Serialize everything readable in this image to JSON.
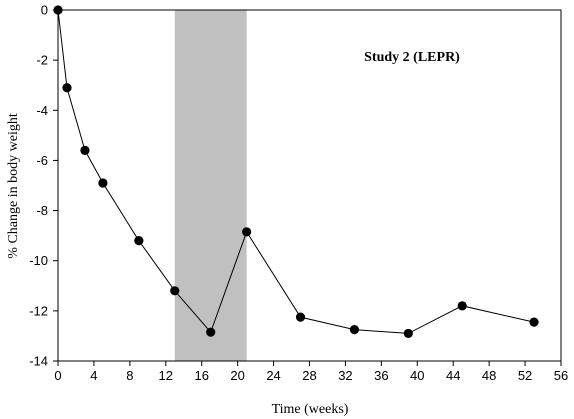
{
  "chart_data": {
    "type": "line",
    "title": "",
    "xlabel": "Time (weeks)",
    "ylabel": "% Change in body weight",
    "xlim": [
      0,
      56
    ],
    "ylim": [
      -14,
      0
    ],
    "xticks": [
      0,
      4,
      8,
      12,
      16,
      20,
      24,
      28,
      32,
      36,
      40,
      44,
      48,
      52,
      56
    ],
    "yticks": [
      0,
      -2,
      -4,
      -6,
      -8,
      -10,
      -12,
      -14
    ],
    "grid": false,
    "annotation": "Study 2 (LEPR)",
    "shaded_region": {
      "x_start": 13,
      "x_end": 21,
      "color": "#c0c0c0"
    },
    "series": [
      {
        "color": "#000000",
        "x": [
          0,
          1,
          3,
          5,
          9,
          13,
          17,
          21,
          27,
          33,
          39,
          45,
          53
        ],
        "y": [
          0,
          -3.1,
          -5.6,
          -6.9,
          -9.2,
          -11.2,
          -12.85,
          -8.85,
          -12.25,
          -12.75,
          -12.9,
          -11.8,
          -12.45
        ]
      }
    ]
  }
}
